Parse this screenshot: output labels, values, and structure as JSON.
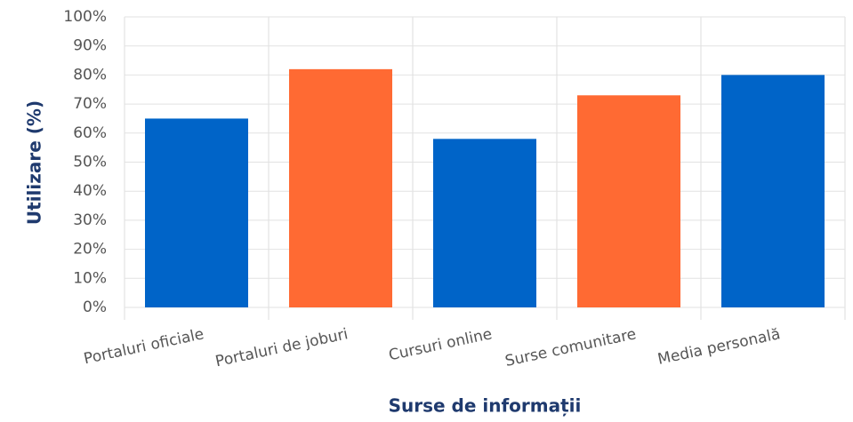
{
  "chart_data": {
    "type": "bar",
    "x_label": "Surse de informații",
    "y_label": "Utilizare (%)",
    "categories": [
      "Portaluri oficiale",
      "Portaluri de joburi",
      "Cursuri online",
      "Surse comunitare",
      "Media personală"
    ],
    "values": [
      65,
      82,
      58,
      73,
      80
    ],
    "colors": [
      "#0064c8",
      "#ff6a33",
      "#0064c8",
      "#ff6a33",
      "#0064c8"
    ],
    "ylim": [
      0,
      100
    ],
    "yticks": [
      {
        "value": 0,
        "label": "0%"
      },
      {
        "value": 10,
        "label": "10%"
      },
      {
        "value": 20,
        "label": "20%"
      },
      {
        "value": 30,
        "label": "30%"
      },
      {
        "value": 40,
        "label": "40%"
      },
      {
        "value": 50,
        "label": "50%"
      },
      {
        "value": 60,
        "label": "60%"
      },
      {
        "value": 70,
        "label": "70%"
      },
      {
        "value": 80,
        "label": "80%"
      },
      {
        "value": 90,
        "label": "90%"
      },
      {
        "value": 100,
        "label": "100%"
      }
    ],
    "grid": true
  }
}
